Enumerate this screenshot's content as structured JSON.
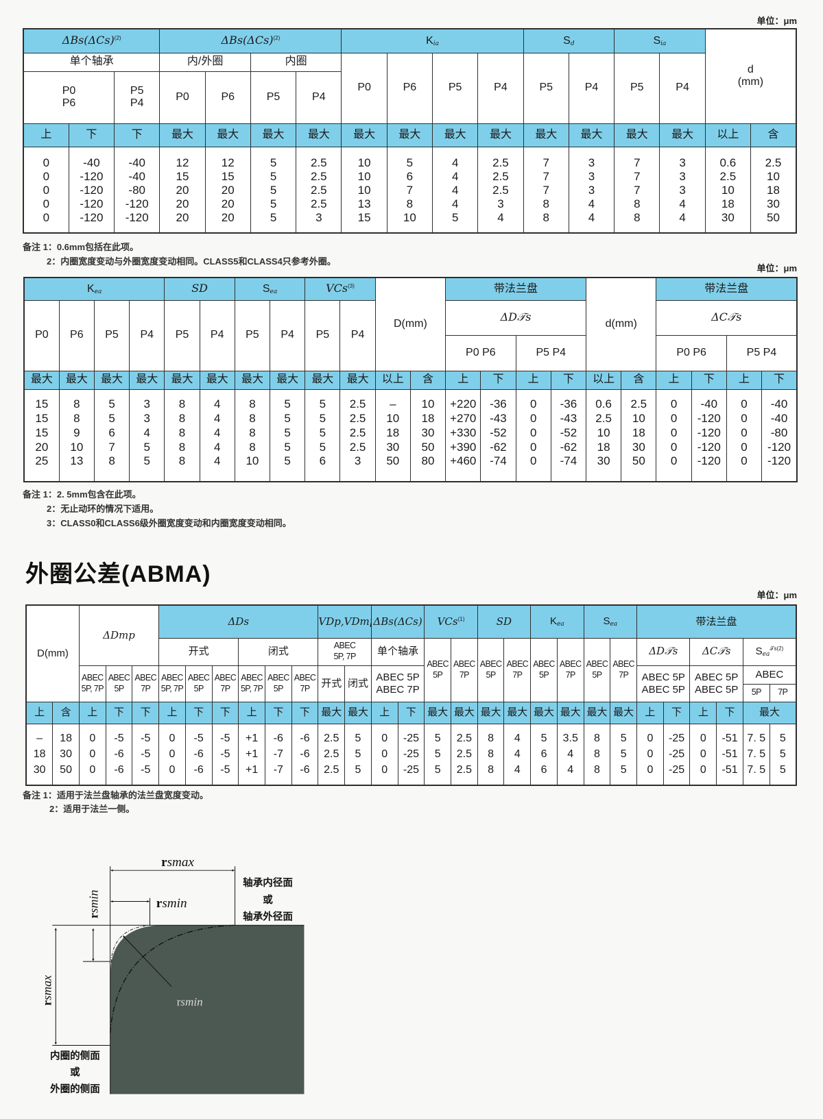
{
  "unit_label": "单位：μm",
  "table1": {
    "header": [
      [
        {
          "t": "ΔBs(ΔCs)",
          "sup": "(2)"
        },
        {
          "t": "ΔBs(ΔCs)",
          "sup": "(2)"
        },
        {
          "t": "K",
          "sub": "ia"
        },
        {
          "t": "S",
          "sub": "d"
        },
        {
          "t": "S",
          "sub": "ia"
        },
        "d\n(mm)"
      ],
      [
        "单个轴承",
        "内/外圈",
        "内圈",
        "P0",
        "P6",
        "P5",
        "P4",
        "P5",
        "P4",
        "P5",
        "P4"
      ],
      [
        "P0\nP6",
        "P5\nP4",
        "P0",
        "P6",
        "P5",
        "P4"
      ],
      [
        "上",
        "下",
        "下",
        "最大",
        "最大",
        "最大",
        "最大",
        "最大",
        "最大",
        "最大",
        "最大",
        "最大",
        "最大",
        "最大",
        "最大",
        "以上",
        "含"
      ]
    ],
    "rows": [
      [
        "0",
        "-40",
        "-40",
        "12",
        "12",
        "5",
        "2.5",
        "10",
        "5",
        "4",
        "2.5",
        "7",
        "3",
        "7",
        "3",
        "0.6",
        "2.5"
      ],
      [
        "0",
        "-120",
        "-40",
        "15",
        "15",
        "5",
        "2.5",
        "10",
        "6",
        "4",
        "2.5",
        "7",
        "3",
        "7",
        "3",
        "2.5",
        "10"
      ],
      [
        "0",
        "-120",
        "-80",
        "20",
        "20",
        "5",
        "2.5",
        "10",
        "7",
        "4",
        "2.5",
        "7",
        "3",
        "7",
        "3",
        "10",
        "18"
      ],
      [
        "0",
        "-120",
        "-120",
        "20",
        "20",
        "5",
        "2.5",
        "13",
        "8",
        "4",
        "3",
        "8",
        "4",
        "8",
        "4",
        "18",
        "30"
      ],
      [
        "0",
        "-120",
        "-120",
        "20",
        "20",
        "5",
        "3",
        "15",
        "10",
        "5",
        "4",
        "8",
        "4",
        "8",
        "4",
        "30",
        "50"
      ]
    ],
    "notes": [
      "备注 1：0.6mm包括在此项。",
      "2：内圈宽度变动与外圈宽度变动相同。CLASS5和CLASS4只参考外圈。"
    ]
  },
  "table2": {
    "header": [
      [
        {
          "t": "K",
          "sub": "ea"
        },
        {
          "t": "SD"
        },
        {
          "t": "S",
          "sub": "ea"
        },
        {
          "t": "VCs",
          "sup": "(3)"
        },
        "D(mm)",
        "带法兰盘",
        "d(mm)",
        "带法兰盘"
      ],
      [
        "P0",
        "P6",
        "P5",
        "P4",
        "P5",
        "P4",
        "P5",
        "P4",
        "P5",
        "P4",
        {
          "t": "ΔD𝒯s"
        },
        {
          "t": "ΔC𝒯s"
        }
      ],
      [
        "P0 P6",
        "P5 P4",
        "P0 P6",
        "P5 P4"
      ],
      [
        "最大",
        "最大",
        "最大",
        "最大",
        "最大",
        "最大",
        "最大",
        "最大",
        "最大",
        "最大",
        "以上",
        "含",
        "上",
        "下",
        "上",
        "下",
        "以上",
        "含",
        "上",
        "下",
        "上",
        "下"
      ]
    ],
    "rows": [
      [
        "15",
        "8",
        "5",
        "3",
        "8",
        "4",
        "8",
        "5",
        "5",
        "2.5",
        "–",
        "10",
        "+220",
        "-36",
        "0",
        "-36",
        "0.6",
        "2.5",
        "0",
        "-40",
        "0",
        "-40"
      ],
      [
        "15",
        "8",
        "5",
        "3",
        "8",
        "4",
        "8",
        "5",
        "5",
        "2.5",
        "10",
        "18",
        "+270",
        "-43",
        "0",
        "-43",
        "2.5",
        "10",
        "0",
        "-120",
        "0",
        "-40"
      ],
      [
        "15",
        "9",
        "6",
        "4",
        "8",
        "4",
        "8",
        "5",
        "5",
        "2.5",
        "18",
        "30",
        "+330",
        "-52",
        "0",
        "-52",
        "10",
        "18",
        "0",
        "-120",
        "0",
        "-80"
      ],
      [
        "20",
        "10",
        "7",
        "5",
        "8",
        "4",
        "8",
        "5",
        "5",
        "2.5",
        "30",
        "50",
        "+390",
        "-62",
        "0",
        "-62",
        "18",
        "30",
        "0",
        "-120",
        "0",
        "-120"
      ],
      [
        "25",
        "13",
        "8",
        "5",
        "8",
        "4",
        "10",
        "5",
        "6",
        "3",
        "50",
        "80",
        "+460",
        "-74",
        "0",
        "-74",
        "30",
        "50",
        "0",
        "-120",
        "0",
        "-120"
      ]
    ],
    "notes": [
      "备注 1：2. 5mm包含在此项。",
      "2：无止动环的情况下适用。",
      "3：CLASS0和CLASS6级外圈宽度变动和内圈宽度变动相同。"
    ]
  },
  "section_title": "外圈公差(ABMA)",
  "table3": {
    "header": [
      [
        "D(mm)",
        {
          "t": "ΔDmp"
        },
        {
          "t": "ΔDs"
        },
        {
          "t": "VDp,VDmp"
        },
        {
          "t": "ΔBs(ΔCs)"
        },
        {
          "t": "VCs",
          "sup": "(1)"
        },
        {
          "t": "SD"
        },
        {
          "t": "K",
          "sub": "ea"
        },
        {
          "t": "S",
          "sub": "ea"
        },
        "带法兰盘"
      ],
      [
        "开式",
        "闭式",
        "ABEC\n5P, 7P",
        "单个轴承",
        "ABEC\n5P",
        "ABEC\n7P",
        "ABEC\n5P",
        "ABEC\n7P",
        "ABEC\n5P",
        "ABEC\n7P",
        "ABEC\n5P",
        "ABEC\n7P",
        {
          "t": "ΔD𝒯s"
        },
        {
          "t": "ΔC𝒯s"
        },
        {
          "t": "S",
          "sub": "ea",
          "sup": "𝒯s(2)"
        }
      ],
      [
        "ABEC\n5P, 7P",
        "ABEC\n5P",
        "ABEC\n7P",
        "ABEC\n5P, 7P",
        "ABEC\n5P",
        "ABEC\n7P",
        "ABEC\n5P, 7P",
        "ABEC\n5P",
        "ABEC\n7P",
        "开式",
        "闭式",
        "ABEC  5P\nABEC  7P",
        "ABEC  5P\nABEC  5P",
        "ABEC  5P\nABEC  5P",
        "ABEC"
      ],
      [
        "5P",
        "7P"
      ],
      [
        "上",
        "含",
        "上",
        "下",
        "下",
        "上",
        "下",
        "下",
        "上",
        "下",
        "下",
        "最大",
        "最大",
        "上",
        "下",
        "最大",
        "最大",
        "最大",
        "最大",
        "最大",
        "最大",
        "最大",
        "最大",
        "上",
        "下",
        "上",
        "下",
        "最大"
      ]
    ],
    "rows": [
      [
        "–",
        "18",
        "0",
        "-5",
        "-5",
        "0",
        "-5",
        "-5",
        "+1",
        "-6",
        "-6",
        "2.5",
        "5",
        "0",
        "-25",
        "5",
        "2.5",
        "8",
        "4",
        "5",
        "3.5",
        "8",
        "5",
        "0",
        "-25",
        "0",
        "-51",
        "7. 5",
        "5"
      ],
      [
        "18",
        "30",
        "0",
        "-6",
        "-5",
        "0",
        "-6",
        "-5",
        "+1",
        "-7",
        "-6",
        "2.5",
        "5",
        "0",
        "-25",
        "5",
        "2.5",
        "8",
        "4",
        "6",
        "4",
        "8",
        "5",
        "0",
        "-25",
        "0",
        "-51",
        "7. 5",
        "5"
      ],
      [
        "30",
        "50",
        "0",
        "-6",
        "-5",
        "0",
        "-6",
        "-5",
        "+1",
        "-7",
        "-6",
        "2.5",
        "5",
        "0",
        "-25",
        "5",
        "2.5",
        "8",
        "4",
        "6",
        "4",
        "8",
        "5",
        "0",
        "-25",
        "0",
        "-51",
        "7. 5",
        "5"
      ]
    ],
    "notes": [
      "备注 1：适用于法兰盘轴承的法兰盘宽度变动。",
      "2：适用于法兰一侧。"
    ]
  },
  "diagram": {
    "r": "r",
    "smax": "smax",
    "smin": "smin",
    "right_label": [
      "轴承内径面",
      "或",
      "轴承外径面"
    ],
    "left_label": [
      "内圈的侧面",
      "或",
      "外圈的侧面"
    ],
    "colors": {
      "fill": "#4c5852",
      "line": "#111111"
    }
  },
  "colors": {
    "header_blue": "#80cfea",
    "border": "#2e2e2e"
  }
}
